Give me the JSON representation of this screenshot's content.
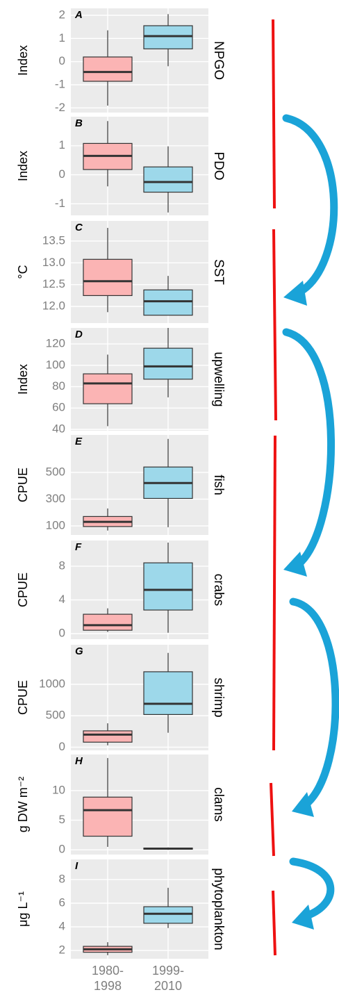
{
  "chart_data": [
    {
      "type": "box",
      "panel_label": "A",
      "strip": "NPGO",
      "ylabel": "Index",
      "ylim": [
        -2.2,
        2.3
      ],
      "yticks": [
        -2,
        -1,
        0,
        1,
        2
      ],
      "boxes": [
        {
          "color": "#fbb4b4",
          "min": -1.9,
          "q1": -0.85,
          "median": -0.45,
          "q3": 0.2,
          "max": 1.35
        },
        {
          "color": "#9dd8ea",
          "min": -0.2,
          "q1": 0.55,
          "median": 1.1,
          "q3": 1.55,
          "max": 2.05
        }
      ]
    },
    {
      "type": "box",
      "panel_label": "B",
      "strip": "PDO",
      "ylabel": "Index",
      "ylim": [
        -1.4,
        2.0
      ],
      "yticks": [
        -1,
        0,
        1
      ],
      "boxes": [
        {
          "color": "#fbb4b4",
          "min": -0.4,
          "q1": 0.18,
          "median": 0.65,
          "q3": 1.08,
          "max": 1.85
        },
        {
          "color": "#9dd8ea",
          "min": -1.3,
          "q1": -0.6,
          "median": -0.25,
          "q3": 0.27,
          "max": 0.98
        }
      ]
    },
    {
      "type": "box",
      "panel_label": "C",
      "strip": "SST",
      "ylabel": "°C",
      "ylim": [
        11.62,
        13.96
      ],
      "yticks": [
        {
          "value": 12,
          "label": "12.0"
        },
        12.5,
        {
          "value": 13,
          "label": "13.0"
        },
        13.5
      ],
      "boxes": [
        {
          "color": "#fbb4b4",
          "min": 11.87,
          "q1": 12.25,
          "median": 12.58,
          "q3": 13.08,
          "max": 13.8
        },
        {
          "color": "#9dd8ea",
          "min": 11.8,
          "q1": 11.8,
          "median": 12.12,
          "q3": 12.38,
          "max": 12.7
        }
      ]
    },
    {
      "type": "box",
      "panel_label": "D",
      "strip": "upwelling",
      "ylabel": "Index",
      "ylim": [
        38.7,
        135
      ],
      "yticks": [
        40,
        60,
        80,
        100,
        120
      ],
      "boxes": [
        {
          "color": "#fbb4b4",
          "min": 43,
          "q1": 64,
          "median": 83,
          "q3": 92,
          "max": 110
        },
        {
          "color": "#9dd8ea",
          "min": 70,
          "q1": 87,
          "median": 99,
          "q3": 116,
          "max": 135
        }
      ]
    },
    {
      "type": "box",
      "panel_label": "E",
      "strip": "fish",
      "ylabel": "CPUE",
      "ylim": [
        32,
        780
      ],
      "yticks": [
        100,
        300,
        500
      ],
      "boxes": [
        {
          "color": "#fbb4b4",
          "min": 65,
          "q1": 95,
          "median": 130,
          "q3": 170,
          "max": 230
        },
        {
          "color": "#9dd8ea",
          "min": 90,
          "q1": 305,
          "median": 420,
          "q3": 540,
          "max": 750
        }
      ]
    },
    {
      "type": "box",
      "panel_label": "F",
      "strip": "crabs",
      "ylabel": "CPUE",
      "ylim": [
        -0.66,
        11.05
      ],
      "yticks": [
        0,
        4,
        8
      ],
      "boxes": [
        {
          "color": "#fbb4b4",
          "min": 0.2,
          "q1": 0.4,
          "median": 1,
          "q3": 2.3,
          "max": 3
        },
        {
          "color": "#9dd8ea",
          "min": 0.1,
          "q1": 2.8,
          "median": 5.2,
          "q3": 8.4,
          "max": 10.8
        }
      ]
    },
    {
      "type": "box",
      "panel_label": "G",
      "strip": "shrimp",
      "ylabel": "CPUE",
      "ylim": [
        -50,
        1630
      ],
      "yticks": [
        0,
        500,
        1000
      ],
      "boxes": [
        {
          "color": "#fbb4b4",
          "min": 30,
          "q1": 80,
          "median": 200,
          "q3": 260,
          "max": 380
        },
        {
          "color": "#9dd8ea",
          "min": 230,
          "q1": 520,
          "median": 690,
          "q3": 1200,
          "max": 1500
        }
      ]
    },
    {
      "type": "box",
      "panel_label": "H",
      "strip": "clams",
      "ylabel": "g DW m⁻²",
      "ylim": [
        -0.8,
        16.1
      ],
      "yticks": [
        0,
        5,
        10
      ],
      "boxes": [
        {
          "color": "#fbb4b4",
          "min": 0.5,
          "q1": 2.3,
          "median": 6.7,
          "q3": 8.9,
          "max": 15.5
        },
        {
          "color": "#9dd8ea",
          "min": 0,
          "q1": 0.1,
          "median": 0.2,
          "q3": 0.3,
          "max": 0.4
        }
      ]
    },
    {
      "type": "box",
      "panel_label": "I",
      "strip": "phytoplankton",
      "ylabel": "μg L⁻¹",
      "ylim": [
        1.3,
        9.7
      ],
      "yticks": [
        2,
        4,
        6,
        8
      ],
      "categories": [
        "1980-\n1998",
        "1999-\n2010"
      ],
      "boxes": [
        {
          "color": "#fbb4b4",
          "min": 1.6,
          "q1": 1.85,
          "median": 2.1,
          "q3": 2.35,
          "max": 2.7
        },
        {
          "color": "#9dd8ea",
          "min": 3.9,
          "q1": 4.3,
          "median": 5.1,
          "q3": 5.7,
          "max": 7.3
        }
      ]
    }
  ]
}
